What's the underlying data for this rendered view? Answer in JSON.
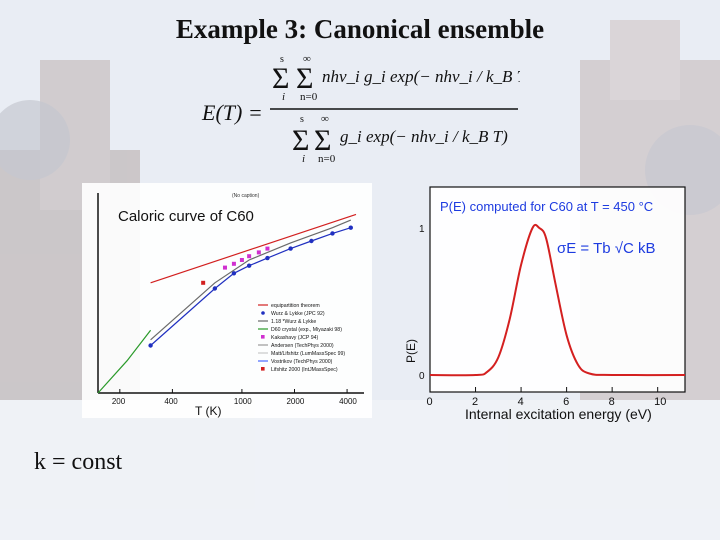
{
  "slide": {
    "title": "Example 3: Canonical ensemble",
    "footer": "k = const"
  },
  "formula": {
    "lhs": "E(T) =",
    "numerator": "nhν_i g_i exp(− nhν_i / k_B T)",
    "denominator": "g_i exp(− nhν_i / k_B T)",
    "sum_upper_1": "s",
    "sum_upper_2": "∞",
    "sum_lower_1": "i",
    "sum_lower_2": "n=0"
  },
  "chart_data": [
    {
      "type": "line",
      "title": "Caloric curve of C60",
      "xlabel": "T (K)",
      "xscale": "log",
      "x_ticks": [
        "200",
        "400",
        "1000",
        "2000",
        "4000"
      ],
      "xlim": [
        150,
        5000
      ],
      "ylabel": "",
      "top_marker": "(No caption)",
      "legend_placement": "center-right",
      "legend": [
        {
          "label": "equipartition theorem",
          "color": "#d22020",
          "marker": "line"
        },
        {
          "label": "Wurz & Lykke (JPC 92)",
          "color": "#2030c0",
          "marker": "dot"
        },
        {
          "label": "1.18 *Wurz & Lykke",
          "color": "#6a6a6a",
          "marker": "line"
        },
        {
          "label": "D60 crystal (exp., Miyazaki 98)",
          "color": "#2a9a2a",
          "marker": "line"
        },
        {
          "label": "Kakashavy (JCP 94)",
          "color": "#d030d0",
          "marker": "square"
        },
        {
          "label": "Andersen (TechPhys 2000)",
          "color": "#9a9a9a",
          "marker": "line"
        },
        {
          "label": "Matt/Lifshitz (LumMassSpec 99)",
          "color": "#c8c8c8",
          "marker": "line"
        },
        {
          "label": "Vostrikov (TechPhys 2000)",
          "color": "#4a6aff",
          "marker": "line"
        },
        {
          "label": "Lifshitz 2000 (IntJMassSpec)",
          "color": "#d22020",
          "marker": "square"
        }
      ],
      "series": [
        {
          "name": "equipartition theorem",
          "x": [
            300,
            4500
          ],
          "y": [
            0.58,
            0.94
          ]
        },
        {
          "name": "Wurz & Lykke (JPC 92)",
          "x": [
            300,
            700,
            900,
            1100,
            1400,
            1900,
            2500,
            3300,
            4200
          ],
          "y": [
            0.25,
            0.55,
            0.63,
            0.67,
            0.71,
            0.76,
            0.8,
            0.84,
            0.87
          ]
        },
        {
          "name": "1.18 *Wurz & Lykke",
          "x": [
            300,
            700,
            1100,
            1900,
            3300,
            4200
          ],
          "y": [
            0.28,
            0.58,
            0.7,
            0.79,
            0.87,
            0.91
          ]
        },
        {
          "name": "D60 crystal (exp., Miyazaki 98)",
          "x": [
            150,
            220,
            300
          ],
          "y": [
            0.0,
            0.17,
            0.33
          ]
        },
        {
          "name": "Kakashavy (JCP 94)",
          "x": [
            800,
            900,
            1000,
            1100,
            1250,
            1400
          ],
          "y": [
            0.66,
            0.68,
            0.7,
            0.72,
            0.74,
            0.76
          ]
        },
        {
          "name": "Lifshitz 2000 (IntJMassSpec)",
          "x": [
            600
          ],
          "y": [
            0.58
          ]
        }
      ]
    },
    {
      "type": "line",
      "title": "P(E) computed for C60 at T = 450 °C",
      "annotation": "σE = Tb √C kB",
      "xlabel": "Internal excitation energy (eV)",
      "ylabel": "P(E)",
      "x_ticks": [
        "0",
        "2",
        "4",
        "6",
        "8",
        "10"
      ],
      "y_ticks": [
        "0",
        "1"
      ],
      "xlim": [
        0,
        11.2
      ],
      "ylim": [
        0,
        1.2
      ],
      "series": [
        {
          "name": "P(E)",
          "color": "#d42020",
          "x": [
            0,
            2.0,
            2.5,
            3.0,
            3.5,
            4.0,
            4.5,
            4.8,
            5.1,
            5.5,
            6.0,
            6.5,
            7.0,
            8.0,
            11.2
          ],
          "y": [
            0,
            0.0,
            0.02,
            0.12,
            0.38,
            0.75,
            1.0,
            1.0,
            0.93,
            0.63,
            0.27,
            0.07,
            0.01,
            0,
            0
          ]
        }
      ]
    }
  ]
}
